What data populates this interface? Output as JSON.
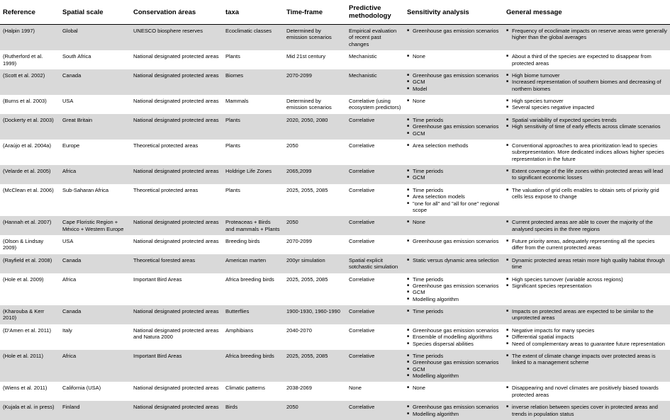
{
  "headers": {
    "reference": "Reference",
    "spatial": "Spatial scale",
    "conservation": "Conservation áreas",
    "taxa": "taxa",
    "timeframe": "Time-frame",
    "predictive": "Predictive methodology",
    "sensitivity": "Sensitivity analysis",
    "message": "General message"
  },
  "rows": [
    {
      "reference": "(Halpin 1997)",
      "spatial": "Global",
      "conservation": "UNESCO biosphere reserves",
      "taxa": "Ecoclimatic classes",
      "timeframe": "Determined by emission scenarios",
      "predictive": "Empirical evaluation of recent past changes",
      "sensitivity": [
        "Greenhouse gas emission scenarios"
      ],
      "message": [
        "Frequency of ecoclimate impacts on reserve areas were generally higher than the global averages"
      ]
    },
    {
      "reference": "(Rutherford et al. 1999)",
      "spatial": "South Africa",
      "conservation": "National designated protected areas",
      "taxa": "Plants",
      "timeframe": "Mid 21st century",
      "predictive": "Mechanistic",
      "sensitivity": [
        "None"
      ],
      "message": [
        "About a third of the species are expected to disappear from protected areas"
      ]
    },
    {
      "reference": "(Scott et al. 2002)",
      "spatial": "Canada",
      "conservation": "National designated protected areas",
      "taxa": "Biomes",
      "timeframe": "2070-2099",
      "predictive": "Mechanistic",
      "sensitivity": [
        "Greenhouse gas emission scenarios",
        "GCM",
        "Model"
      ],
      "message": [
        "High biome turnover",
        "Increased representation of southern biomes and decreasing of northern biomes"
      ]
    },
    {
      "reference": "(Burns et al. 2003)",
      "spatial": "USA",
      "conservation": "National designated protected areas",
      "taxa": "Mammals",
      "timeframe": "Determined by emission scenarios",
      "predictive": "Correlative (using ecosystem predictors)",
      "sensitivity": [
        "None"
      ],
      "message": [
        "High species turnover",
        "Several species negative impacted"
      ]
    },
    {
      "reference": "(Dockerty et al. 2003)",
      "spatial": "Great Britain",
      "conservation": "National designated protected areas",
      "taxa": "Plants",
      "timeframe": "2020, 2050, 2080",
      "predictive": "Correlative",
      "sensitivity": [
        "Time periods",
        "Greenhouse gas emission scenarios",
        "GCM"
      ],
      "message": [
        "Spatial variability of expected species trends",
        "High sensitivity of time of early effects across climate scenarios"
      ]
    },
    {
      "reference": "(Araújo et al. 2004a)",
      "spatial": "Europe",
      "conservation": "Theoretical protected areas",
      "taxa": "Plants",
      "timeframe": "2050",
      "predictive": "Correlative",
      "sensitivity": [
        "Area selection methods"
      ],
      "message": [
        "Conventional approaches to area prioritization lead to species subrepresentation. More dedicated indices allows higher species representation in the future"
      ]
    },
    {
      "reference": "(Velarde et al. 2005)",
      "spatial": "Africa",
      "conservation": "National designated protected areas",
      "taxa": "Holdrige Life Zones",
      "timeframe": "2065,2099",
      "predictive": "Correlative",
      "sensitivity": [
        "Time periods",
        "GCM"
      ],
      "message": [
        "Extent coverage of the life zones within protected areas will lead to significant economic losses"
      ]
    },
    {
      "reference": "(McClean et al. 2006)",
      "spatial": "Sub-Saharan Africa",
      "conservation": "Theoretical protected areas",
      "taxa": "Plants",
      "timeframe": "2025, 2055, 2085",
      "predictive": "Correlative",
      "sensitivity": [
        "Time periods",
        "Area selection models",
        "\"one for all\" and \"all for one\" regional scope"
      ],
      "message": [
        "The valuation of grid cells enables to obtain sets of priority grid cells less expose to change"
      ]
    },
    {
      "reference": "(Hannah et al. 2007)",
      "spatial": "Cape Floristic Region + México + Western Europe",
      "conservation": "National designated protected areas",
      "taxa": "Proteaceas + Birds and mammals + Plants",
      "timeframe": "2050",
      "predictive": "Correlative",
      "sensitivity": [
        "None"
      ],
      "message": [
        "Current protected areas are able to cover the majority of the analysed species in the three regions"
      ]
    },
    {
      "reference": "(Olson & Lindsay 2009)",
      "spatial": "USA",
      "conservation": "National designated protected areas",
      "taxa": "Breeding birds",
      "timeframe": "2070-2099",
      "predictive": "Correlative",
      "sensitivity": [
        "Greenhouse gas emission scenarios"
      ],
      "message": [
        "Future priority areas, adequately representing all the species differ from the current protected areas"
      ]
    },
    {
      "reference": "(Rayfield et al. 2008)",
      "spatial": "Canada",
      "conservation": "Theoretical forested areas",
      "taxa": "American marten",
      "timeframe": "200yr simulation",
      "predictive": "Spatial explicit sotchastic simulation",
      "sensitivity": [
        "Static versus dynamic area selection"
      ],
      "message": [
        "Dynamic protected areas retain more high quality habitat through time"
      ]
    },
    {
      "reference": "(Hole et al. 2009)",
      "spatial": "Africa",
      "conservation": "Important Bird Areas",
      "taxa": "Africa breeding birds",
      "timeframe": "2025, 2055, 2085",
      "predictive": "Correlative",
      "sensitivity": [
        "Time periods",
        "Greenhouse gas emission scenarios",
        "GCM",
        "Modelling algorithm"
      ],
      "message": [
        "High species turnover (variable across regions)",
        "Significant species representation"
      ]
    },
    {
      "reference": "(Kharouba & Kerr 2010)",
      "spatial": "Canada",
      "conservation": "National designated protected areas",
      "taxa": "Butterflies",
      "timeframe": "1900-1930, 1960-1990",
      "predictive": "Correlative",
      "sensitivity": [
        "Time periods"
      ],
      "message": [
        "Impacts on protected areas are expected to be similar to the unprotected areas"
      ]
    },
    {
      "reference": "(D'Amen et al. 2011)",
      "spatial": "Italy",
      "conservation": "National designated protected areas and Natura 2000",
      "taxa": "Amphibians",
      "timeframe": "2040-2070",
      "predictive": "Correlative",
      "sensitivity": [
        "Greenhouse gas emission scenarios",
        "Ensemble of modelling algorithms",
        "Species dispersal abilities"
      ],
      "message": [
        "Negative impacts for many species",
        "Differential spatial impacts",
        "Need of complementary areas to guarantee future representation"
      ]
    },
    {
      "reference": "(Hole et al. 2011)",
      "spatial": "Africa",
      "conservation": "Important Bird Areas",
      "taxa": "Africa breeding birds",
      "timeframe": "2025, 2055, 2085",
      "predictive": "Correlative",
      "sensitivity": [
        "Time periods",
        "Greenhouse gas emission scenarios",
        "GCM",
        "Modelling algorithm"
      ],
      "message": [
        "The extent of climate change impacts over protected areas is linked to a management scheme"
      ]
    },
    {
      "reference": "(Wiens et al. 2011)",
      "spatial": "California (USA)",
      "conservation": "National designated protected areas",
      "taxa": "Climatic patterns",
      "timeframe": "2038-2069",
      "predictive": "None",
      "sensitivity": [
        "None"
      ],
      "message": [
        "Disappearing and novel climates are positively biased towards protected areas"
      ]
    },
    {
      "reference": "(Kujala et al. in press)",
      "spatial": "Finland",
      "conservation": "National designated protected areas",
      "taxa": "Birds",
      "timeframe": "2050",
      "predictive": "Correlative",
      "sensitivity": [
        "Greenhouse gas emission scenarios",
        "Modelling algorithm"
      ],
      "message": [
        "inverse relation between species cover in protected areas and trends in population status"
      ]
    }
  ]
}
